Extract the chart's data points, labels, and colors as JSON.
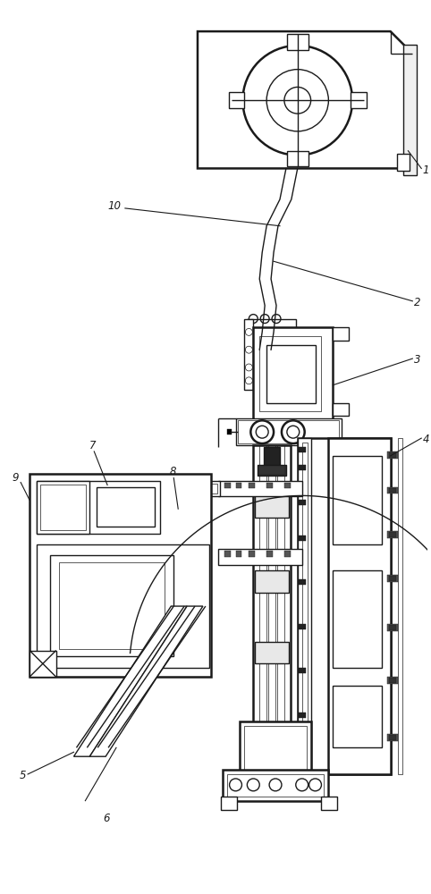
{
  "fig_width": 4.82,
  "fig_height": 10.0,
  "dpi": 100,
  "bg_color": "#ffffff",
  "lc": "#1a1a1a",
  "lw1": 0.5,
  "lw2": 1.0,
  "lw3": 1.8,
  "lw4": 2.5,
  "label_fs": 8.5
}
